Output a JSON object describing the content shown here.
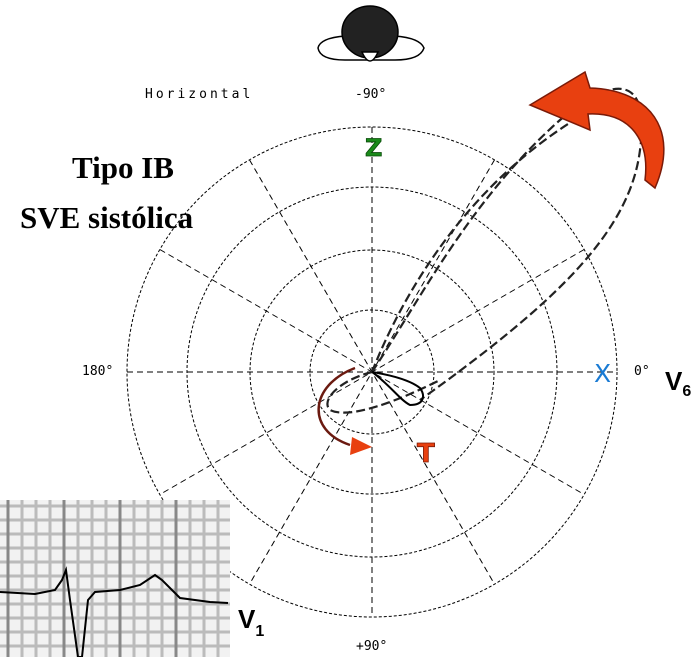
{
  "plane": "Horizontal",
  "angles": {
    "top": "-90°",
    "left": "180°",
    "right": "0°",
    "bottom": "+90°"
  },
  "axes": {
    "z": "Z",
    "x": "X"
  },
  "title": {
    "line1": "Tipo IB",
    "line2": "SVE sistólica"
  },
  "wave": "T",
  "leads": {
    "right": {
      "letter": "V",
      "subscript": "6"
    },
    "ecg": {
      "letter": "V",
      "subscript": "1"
    }
  }
}
